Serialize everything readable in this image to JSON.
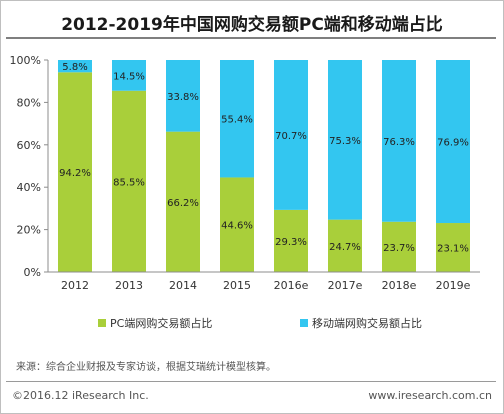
{
  "title": "2012-2019年中国网购交易额PC端和移动端占比",
  "source": "来源：综合企业财报及专家访谈，根据艾瑞统计模型核算。",
  "copyright": "©2016.12 iResearch Inc.",
  "website": "www.iresearch.com.cn",
  "colors": {
    "pc": "#a9cf3a",
    "mobile": "#33c6f0"
  },
  "chart_data": {
    "type": "bar",
    "stacked": true,
    "categories": [
      "2012",
      "2013",
      "2014",
      "2015",
      "2016e",
      "2017e",
      "2018e",
      "2019e"
    ],
    "series": [
      {
        "name": "PC端网购交易额占比",
        "values": [
          94.2,
          85.5,
          66.2,
          44.6,
          29.3,
          24.7,
          23.7,
          23.1
        ],
        "labels": [
          "94.2%",
          "85.5%",
          "66.2%",
          "44.6%",
          "29.3%",
          "24.7%",
          "23.7%",
          "23.1%"
        ]
      },
      {
        "name": "移动端网购交易额占比",
        "values": [
          5.8,
          14.5,
          33.8,
          55.4,
          70.7,
          75.3,
          76.3,
          76.9
        ],
        "labels": [
          "5.8%",
          "14.5%",
          "33.8%",
          "55.4%",
          "70.7%",
          "75.3%",
          "76.3%",
          "76.9%"
        ]
      }
    ],
    "ylim": [
      0,
      100
    ],
    "yticks": [
      "0%",
      "20%",
      "40%",
      "60%",
      "80%",
      "100%"
    ],
    "grid": false,
    "legend": "bottom"
  }
}
